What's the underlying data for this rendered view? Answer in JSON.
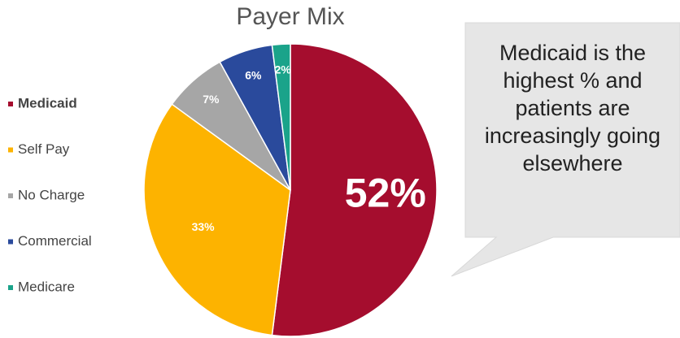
{
  "chart_data": {
    "type": "pie",
    "title": "Payer Mix",
    "categories": [
      "Medicaid",
      "Self Pay",
      "No Charge",
      "Commercial",
      "Medicare"
    ],
    "values": [
      52,
      33,
      7,
      6,
      2
    ],
    "value_labels": [
      "52%",
      "33%",
      "7%",
      "6%",
      "2%"
    ],
    "colors": [
      "#a50d2e",
      "#fdb300",
      "#a6a6a6",
      "#2a4a9c",
      "#1aa38a"
    ],
    "legend": "left",
    "annotation": "Medicaid is the highest % and patients are increasingly going elsewhere"
  }
}
